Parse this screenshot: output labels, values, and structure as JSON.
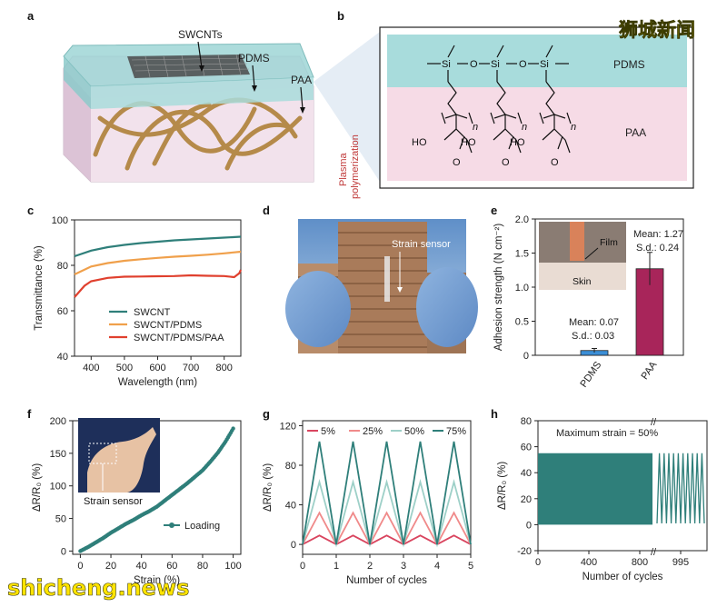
{
  "watermarks": {
    "top_right": "狮城新闻",
    "bottom_left": "shicheng.news"
  },
  "panels": {
    "a": {
      "letter": "a",
      "labels": {
        "swcnts": "SWCNTs",
        "pdms": "PDMS",
        "paa": "PAA"
      },
      "arrow_label": "Plasma\npolymerization",
      "arrow_line1": "Plasma",
      "arrow_line2": "polymerization"
    },
    "b": {
      "letter": "b",
      "layer_top": "PDMS",
      "layer_bottom": "PAA",
      "si": "Si",
      "o": "O",
      "n": "n",
      "ho": "HO",
      "o2": "O"
    },
    "c": {
      "letter": "c"
    },
    "d": {
      "letter": "d",
      "annotation": "Strain sensor"
    },
    "e": {
      "letter": "e",
      "inset_film": "Film",
      "inset_skin": "Skin"
    },
    "f": {
      "letter": "f",
      "inset_label": "Strain sensor"
    },
    "g": {
      "letter": "g"
    },
    "h": {
      "letter": "h",
      "annotation": "Maximum strain = 50%"
    }
  },
  "chart_data": [
    {
      "panel": "c",
      "type": "line",
      "xlabel": "Wavelength (nm)",
      "ylabel": "Transmittance (%)",
      "xlim": [
        350,
        850
      ],
      "ylim": [
        40,
        100
      ],
      "xticks": [
        400,
        500,
        600,
        700,
        800
      ],
      "yticks": [
        40,
        60,
        80,
        100
      ],
      "legend_position": "bottom-center",
      "series": [
        {
          "name": "SWCNT",
          "color": "#2f7f7a",
          "x": [
            350,
            400,
            450,
            500,
            550,
            600,
            650,
            700,
            750,
            800,
            850
          ],
          "values": [
            84,
            86.5,
            88,
            89,
            89.8,
            90.4,
            91,
            91.4,
            91.8,
            92.2,
            92.6
          ]
        },
        {
          "name": "SWCNT/PDMS",
          "color": "#f0a04b",
          "x": [
            350,
            400,
            450,
            500,
            550,
            600,
            650,
            700,
            750,
            800,
            850
          ],
          "values": [
            76,
            79.5,
            81,
            82,
            82.7,
            83.3,
            83.8,
            84.2,
            84.7,
            85.3,
            86
          ]
        },
        {
          "name": "SWCNT/PDMS/PAA",
          "color": "#e0402e",
          "x": [
            350,
            380,
            400,
            450,
            500,
            550,
            600,
            650,
            700,
            750,
            800,
            830,
            845,
            850
          ],
          "values": [
            66,
            71,
            73,
            74.5,
            75,
            75.1,
            75.2,
            75.3,
            75.6,
            75.4,
            75.3,
            74.8,
            76.5,
            78
          ]
        }
      ]
    },
    {
      "panel": "e",
      "type": "bar",
      "ylabel": "Adhesion strength (N cm⁻²)",
      "ylim": [
        0,
        2.0
      ],
      "yticks": [
        0,
        0.5,
        1.0,
        1.5,
        2.0
      ],
      "ytick_labels": [
        "0",
        "0.5",
        "1.0",
        "1.5",
        "2.0"
      ],
      "categories": [
        "PDMS",
        "PAA"
      ],
      "values": [
        0.07,
        1.27
      ],
      "errors": [
        0.03,
        0.24
      ],
      "colors": [
        "#3b8ed6",
        "#a8255a"
      ],
      "annotations": [
        {
          "lines": [
            "Mean: 0.07",
            "S.d.: 0.03"
          ]
        },
        {
          "lines": [
            "Mean: 1.27",
            "S.d.: 0.24"
          ]
        }
      ]
    },
    {
      "panel": "f",
      "type": "scatter",
      "xlabel": "Strain (%)",
      "ylabel": "ΔR/R₀ (%)",
      "xlim": [
        -5,
        105
      ],
      "ylim": [
        -5,
        200
      ],
      "xticks": [
        0,
        20,
        40,
        60,
        80,
        100
      ],
      "yticks": [
        0,
        50,
        100,
        150,
        200
      ],
      "series": [
        {
          "name": "Loading",
          "color": "#2f7f7a",
          "x": [
            0,
            5,
            10,
            15,
            20,
            25,
            30,
            35,
            40,
            45,
            50,
            55,
            60,
            65,
            70,
            75,
            80,
            85,
            90,
            95,
            100
          ],
          "values": [
            0,
            6,
            13,
            20,
            28,
            35,
            42,
            48,
            55,
            61,
            68,
            77,
            86,
            95,
            104,
            114,
            124,
            137,
            151,
            168,
            188
          ]
        }
      ]
    },
    {
      "panel": "g",
      "type": "line",
      "xlabel": "Number of cycles",
      "ylabel": "ΔR/R₀ (%)",
      "xlim": [
        0,
        5
      ],
      "ylim": [
        -10,
        125
      ],
      "xticks": [
        0,
        1,
        2,
        3,
        4,
        5
      ],
      "yticks": [
        0,
        40,
        80,
        120
      ],
      "legend_position": "top",
      "cycles": 5,
      "series": [
        {
          "name": "5%",
          "color": "#d9455f",
          "peak": 9
        },
        {
          "name": "25%",
          "color": "#f08a8a",
          "peak": 32
        },
        {
          "name": "50%",
          "color": "#9ed0c8",
          "peak": 63
        },
        {
          "name": "75%",
          "color": "#2f7f7a",
          "peak": 104
        }
      ]
    },
    {
      "panel": "h",
      "type": "area",
      "xlabel": "Number of cycles",
      "ylabel": "ΔR/R₀ (%)",
      "ylim": [
        -20,
        80
      ],
      "yticks": [
        -20,
        0,
        20,
        40,
        60,
        80
      ],
      "xticks": [
        0,
        400,
        800,
        995
      ],
      "xtick_labels": [
        "0",
        "400",
        "800",
        "995"
      ],
      "dense_range": [
        0,
        900
      ],
      "dense_band": [
        0,
        55
      ],
      "zoom_range": [
        950,
        1040
      ],
      "zoom_cycles": 10,
      "zoom_band": [
        1,
        55
      ],
      "color": "#2f7f7a"
    }
  ]
}
